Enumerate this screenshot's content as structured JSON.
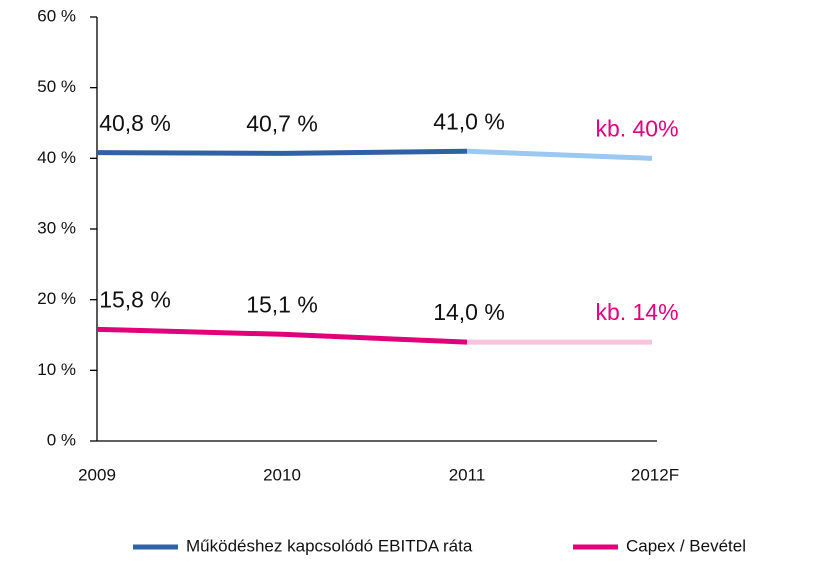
{
  "chart_data": {
    "type": "line",
    "categories": [
      "2009",
      "2010",
      "2011",
      "2012F"
    ],
    "series": [
      {
        "name": "Működéshez kapcsolódó EBITDA ráta",
        "color": "#2e62a4",
        "forecast_color": "#9ac8f0",
        "values": [
          40.8,
          40.7,
          41.0,
          40
        ],
        "value_labels": [
          "40,8 %",
          "40,7 %",
          "41,0 %",
          "kb. 40%"
        ]
      },
      {
        "name": "Capex / Bevétel",
        "color": "#e2007a",
        "forecast_color": "#f9c3e0",
        "values": [
          15.8,
          15.1,
          14.0,
          14
        ],
        "value_labels": [
          "15,8 %",
          "15,1 %",
          "14,0 %",
          "kb. 14%"
        ]
      }
    ],
    "forecast_label_color": "#e2007a",
    "ylim": [
      0,
      60
    ],
    "yticks": [
      {
        "value": 0,
        "label": "0 %"
      },
      {
        "value": 10,
        "label": "10 %"
      },
      {
        "value": 20,
        "label": "20 %"
      },
      {
        "value": 30,
        "label": "30 %"
      },
      {
        "value": 40,
        "label": "40 %"
      },
      {
        "value": 50,
        "label": "50 %"
      },
      {
        "value": 60,
        "label": "60 %"
      }
    ],
    "legend": "bottom"
  }
}
